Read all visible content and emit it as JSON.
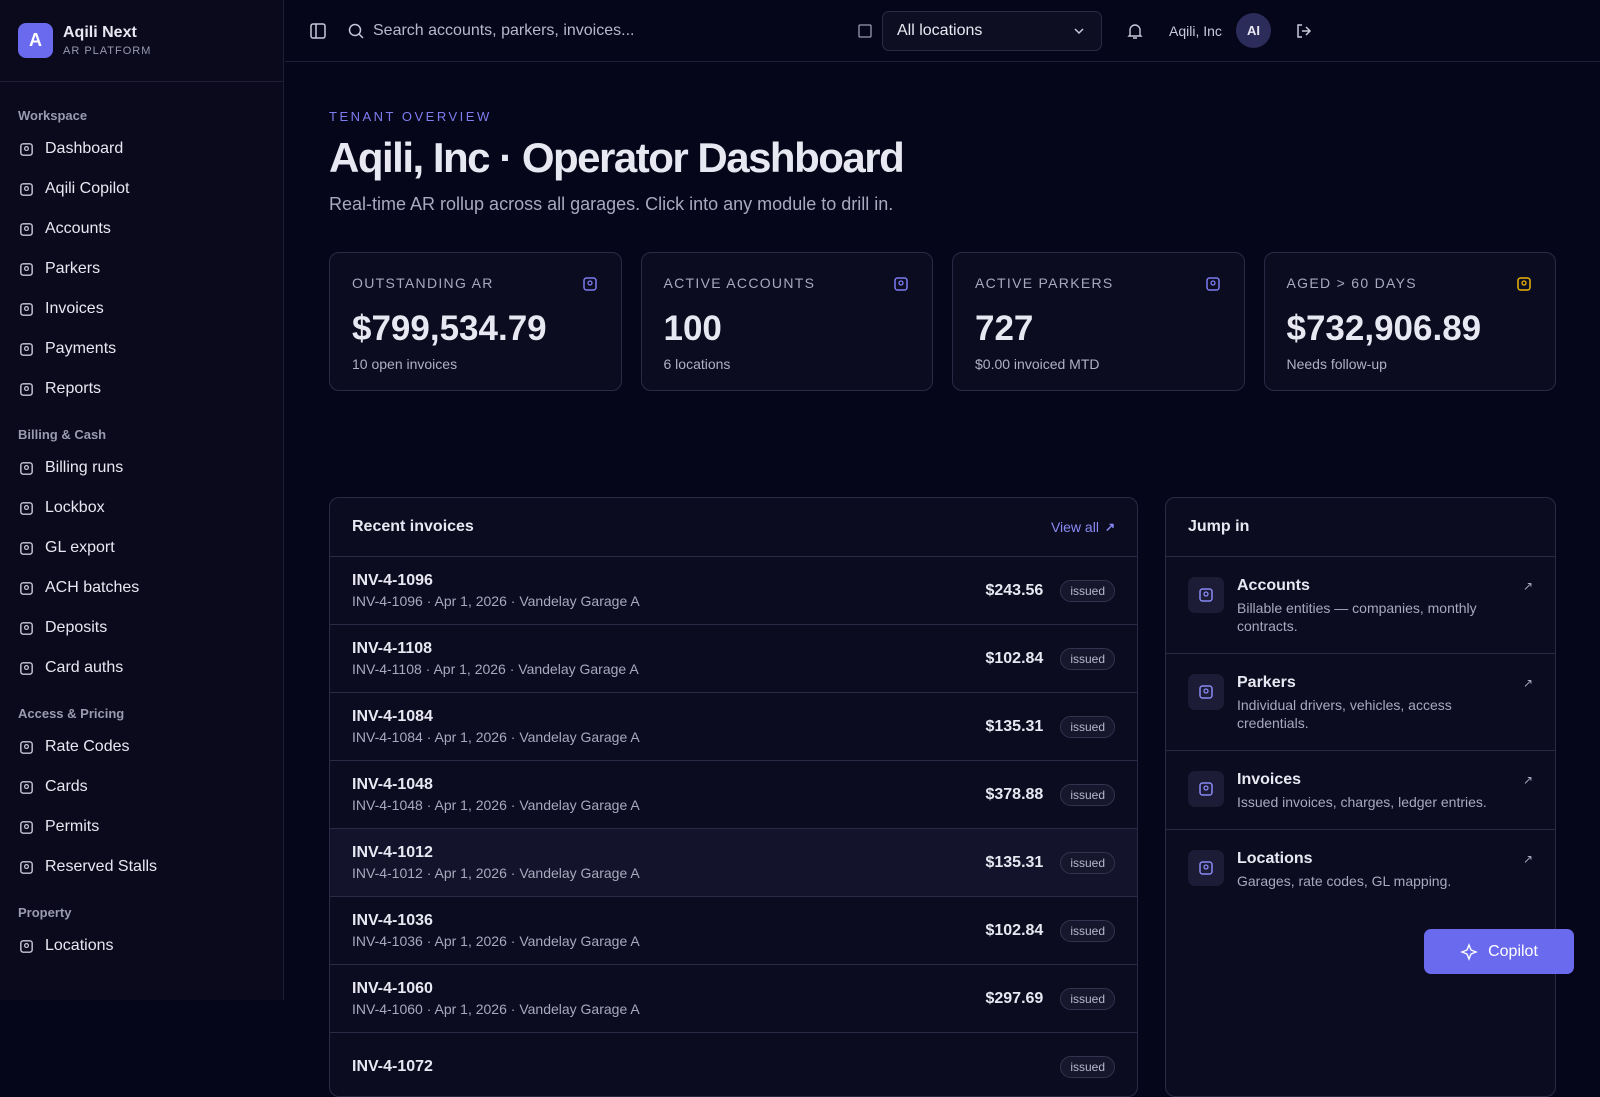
{
  "brand": {
    "logo": "A",
    "name": "Aqili Next",
    "tagline": "AR PLATFORM"
  },
  "sidebar": {
    "sections": [
      {
        "label": "Workspace",
        "items": [
          "Dashboard",
          "Aqili Copilot",
          "Accounts",
          "Parkers",
          "Invoices",
          "Payments",
          "Reports"
        ]
      },
      {
        "label": "Billing & Cash",
        "items": [
          "Billing runs",
          "Lockbox",
          "GL export",
          "ACH batches",
          "Deposits",
          "Card auths"
        ]
      },
      {
        "label": "Access & Pricing",
        "items": [
          "Rate Codes",
          "Cards",
          "Permits",
          "Reserved Stalls"
        ]
      },
      {
        "label": "Property",
        "items": [
          "Locations"
        ]
      }
    ]
  },
  "topbar": {
    "search_placeholder": "Search accounts, parkers, invoices...",
    "location": "All locations",
    "user": "Aqili, Inc",
    "avatar": "AI"
  },
  "header": {
    "eyebrow": "TENANT OVERVIEW",
    "title": "Aqili, Inc · Operator Dashboard",
    "subtitle": "Real-time AR rollup across all garages. Click into any module to drill in."
  },
  "kpis": [
    {
      "label": "OUTSTANDING AR",
      "value": "$799,534.79",
      "sub": "10 open invoices"
    },
    {
      "label": "ACTIVE ACCOUNTS",
      "value": "100",
      "sub": "6 locations"
    },
    {
      "label": "ACTIVE PARKERS",
      "value": "727",
      "sub": "$0.00 invoiced MTD"
    },
    {
      "label": "AGED > 60 DAYS",
      "value": "$732,906.89",
      "sub": "Needs follow-up"
    }
  ],
  "invoices": {
    "title": "Recent invoices",
    "view_all": "View all",
    "rows": [
      {
        "id": "INV-4-1096",
        "meta": "INV-4-1096 · Apr 1, 2026 · Vandelay Garage A",
        "amount": "$243.56",
        "status": "issued"
      },
      {
        "id": "INV-4-1108",
        "meta": "INV-4-1108 · Apr 1, 2026 · Vandelay Garage A",
        "amount": "$102.84",
        "status": "issued"
      },
      {
        "id": "INV-4-1084",
        "meta": "INV-4-1084 · Apr 1, 2026 · Vandelay Garage A",
        "amount": "$135.31",
        "status": "issued"
      },
      {
        "id": "INV-4-1048",
        "meta": "INV-4-1048 · Apr 1, 2026 · Vandelay Garage A",
        "amount": "$378.88",
        "status": "issued"
      },
      {
        "id": "INV-4-1012",
        "meta": "INV-4-1012 · Apr 1, 2026 · Vandelay Garage A",
        "amount": "$135.31",
        "status": "issued"
      },
      {
        "id": "INV-4-1036",
        "meta": "INV-4-1036 · Apr 1, 2026 · Vandelay Garage A",
        "amount": "$102.84",
        "status": "issued"
      },
      {
        "id": "INV-4-1060",
        "meta": "INV-4-1060 · Apr 1, 2026 · Vandelay Garage A",
        "amount": "$297.69",
        "status": "issued"
      },
      {
        "id": "INV-4-1072",
        "status": "issued"
      }
    ]
  },
  "jump": {
    "title": "Jump in",
    "items": [
      {
        "title": "Accounts",
        "desc": "Billable entities — companies, monthly contracts."
      },
      {
        "title": "Parkers",
        "desc": "Individual drivers, vehicles, access credentials."
      },
      {
        "title": "Invoices",
        "desc": "Issued invoices, charges, ledger entries."
      },
      {
        "title": "Locations",
        "desc": "Garages, rate codes, GL mapping."
      }
    ]
  },
  "copilot_button": "Copilot"
}
